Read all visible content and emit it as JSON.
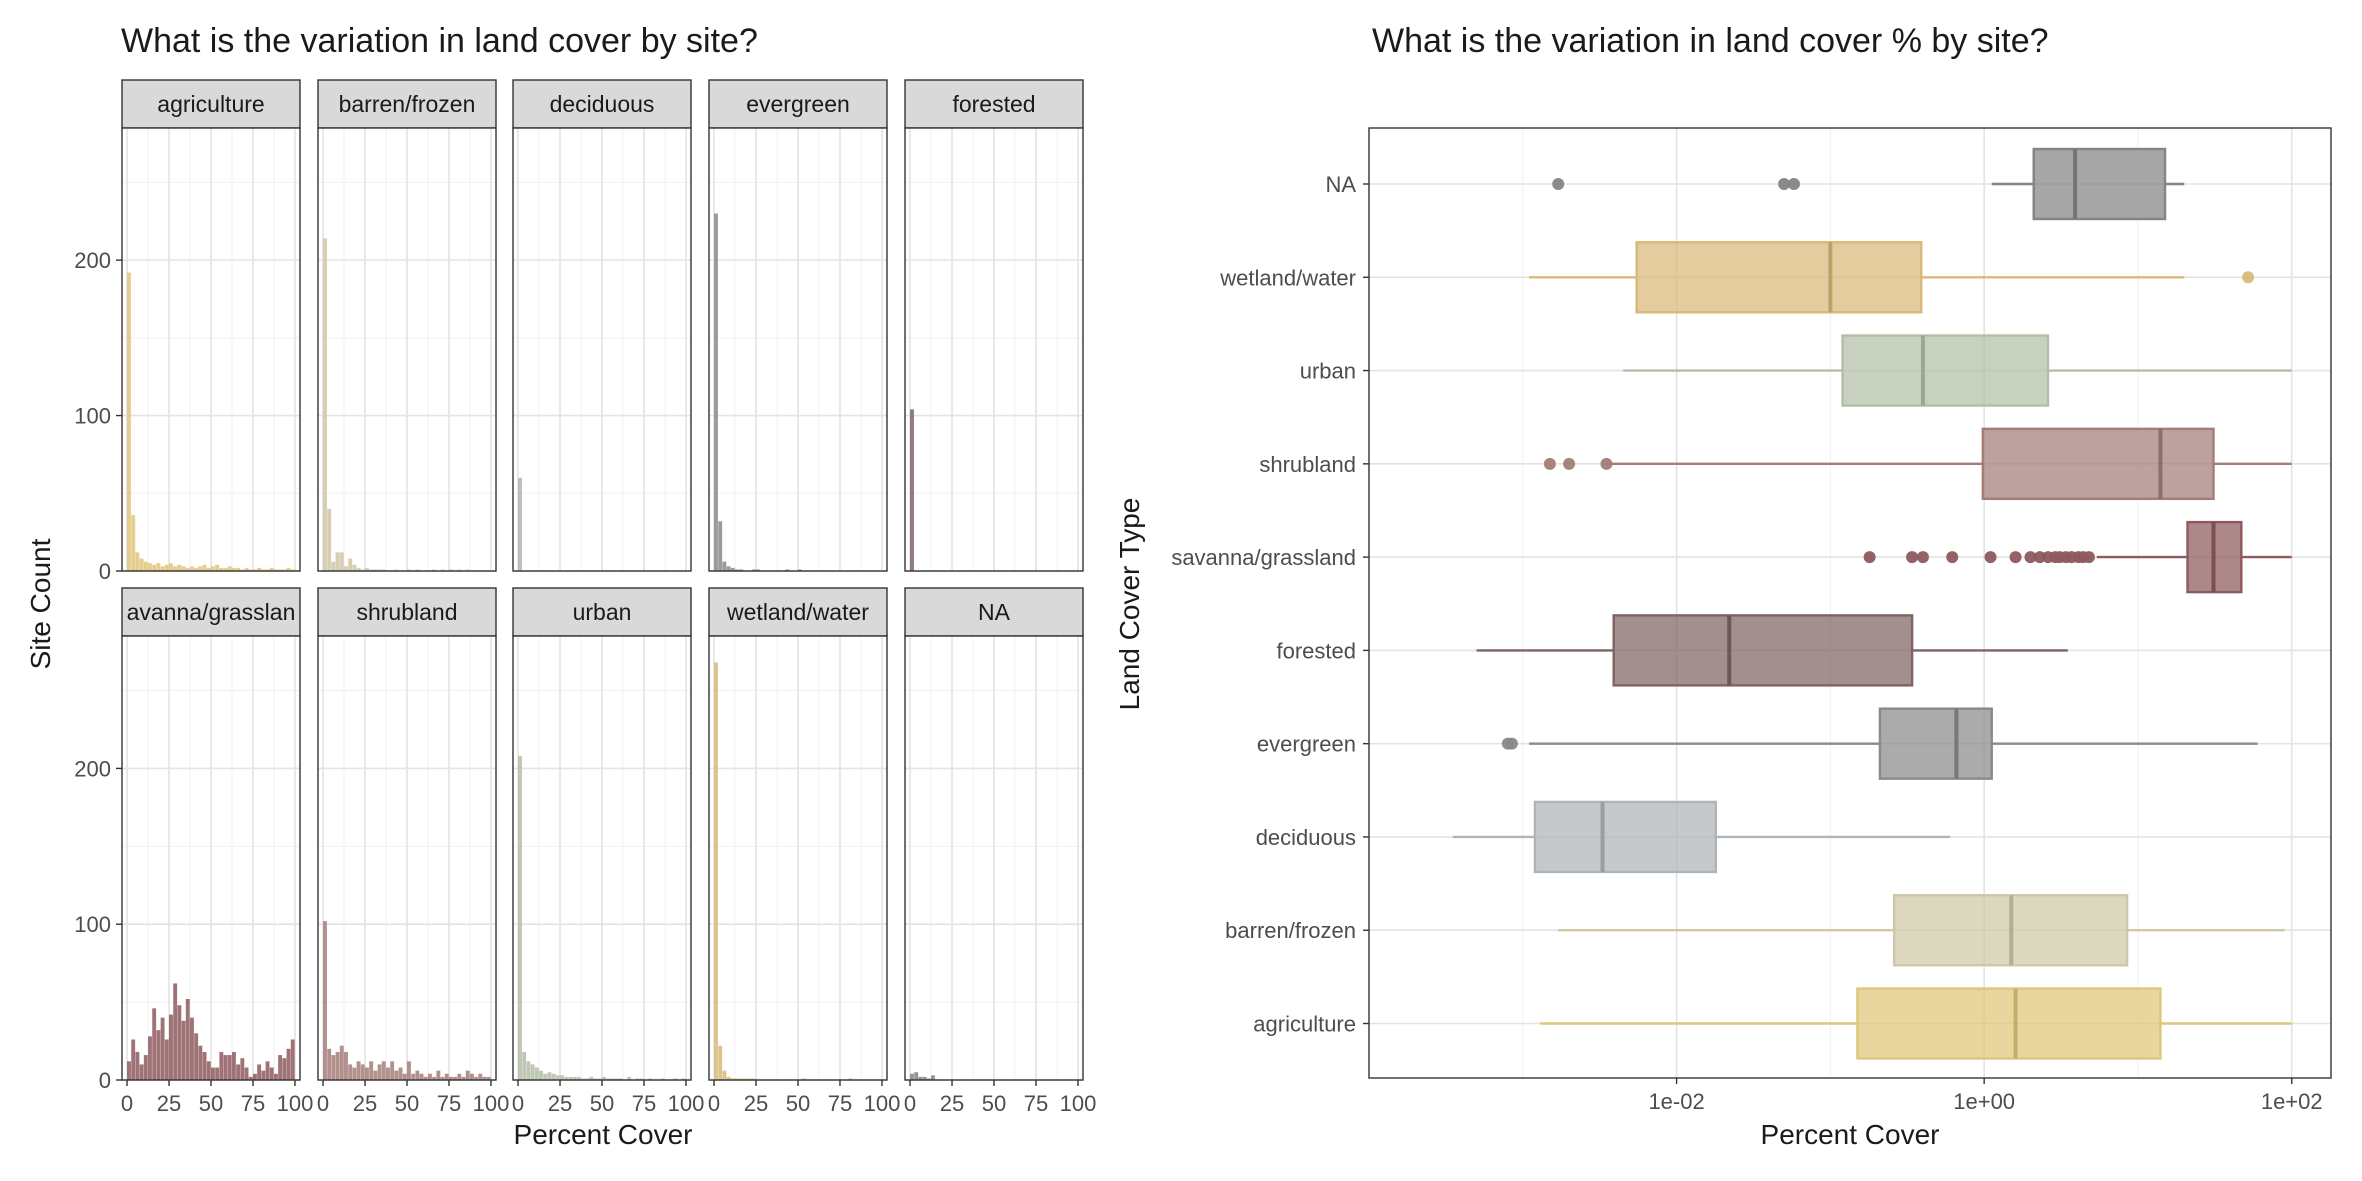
{
  "left_panel": {
    "title": "What is the variation in land cover by site?"
  },
  "right_panel": {
    "title": "What is the variation in land cover % by site?"
  },
  "colors": {
    "agriculture": "#E0C679",
    "barren/frozen": "#CFC7A6",
    "deciduous": "#AEB4B8",
    "evergreen": "#8A8A8A",
    "forested": "#7E6462",
    "savanna/grassland": "#8E5A5E",
    "shrubland": "#A47D78",
    "urban": "#B3BEA6",
    "wetland/water": "#D9B978",
    "NA": "#848484"
  },
  "chart_data": [
    {
      "type": "bar",
      "subtype": "faceted-histogram",
      "title": "What is the variation in land cover by site?",
      "xlabel": "Percent Cover",
      "ylabel": "Site Count",
      "xlim": [
        -3,
        103
      ],
      "ylim": [
        0,
        285
      ],
      "x_ticks": [
        0,
        25,
        50,
        75,
        100
      ],
      "x_tick_labels": [
        "0",
        "25",
        "50",
        "75",
        "100"
      ],
      "y_ticks": [
        0,
        100,
        200
      ],
      "y_tick_labels": [
        "0",
        "100",
        "200"
      ],
      "bin_width": 2.5,
      "grid": true,
      "facets": [
        {
          "name": "agriculture",
          "bins": [
            0,
            2.5,
            5,
            7.5,
            10,
            12.5,
            15,
            17.5,
            20,
            22.5,
            25,
            27.5,
            30,
            32.5,
            35,
            37.5,
            40,
            42.5,
            45,
            47.5,
            50,
            52.5,
            55,
            57.5,
            60,
            62.5,
            65,
            67.5,
            70,
            72.5,
            75,
            77.5,
            80,
            82.5,
            85,
            87.5,
            90,
            92.5,
            95,
            97.5
          ],
          "counts": [
            192,
            36,
            12,
            8,
            6,
            5,
            4,
            5,
            3,
            4,
            5,
            3,
            4,
            3,
            2,
            3,
            2,
            3,
            4,
            2,
            3,
            4,
            2,
            2,
            3,
            2,
            2,
            1,
            2,
            1,
            1,
            2,
            1,
            1,
            2,
            1,
            1,
            1,
            2,
            1
          ]
        },
        {
          "name": "barren/frozen",
          "bins": [
            0,
            2.5,
            5,
            7.5,
            10,
            12.5,
            15,
            17.5,
            20,
            22.5,
            25,
            27.5,
            30,
            32.5,
            35,
            37.5,
            40,
            42.5,
            45,
            47.5,
            50,
            52.5,
            55,
            57.5,
            60,
            62.5,
            65,
            67.5,
            70,
            72.5,
            75,
            77.5,
            80,
            82.5,
            85,
            87.5
          ],
          "counts": [
            214,
            40,
            6,
            12,
            12,
            3,
            8,
            4,
            2,
            1,
            2,
            1,
            1,
            1,
            1,
            0,
            0,
            1,
            0,
            0,
            1,
            0,
            1,
            0,
            0,
            0,
            1,
            0,
            1,
            0,
            1,
            0,
            1,
            0,
            1,
            0
          ]
        },
        {
          "name": "deciduous",
          "bins": [
            0
          ],
          "counts": [
            60
          ]
        },
        {
          "name": "evergreen",
          "bins": [
            0,
            2.5,
            5,
            7.5,
            10,
            12.5,
            15,
            17.5,
            20,
            22.5,
            25,
            27.5,
            30,
            32.5,
            35,
            37.5,
            40,
            42.5,
            45,
            47.5,
            50
          ],
          "counts": [
            230,
            32,
            6,
            3,
            2,
            1,
            1,
            0,
            0,
            1,
            1,
            0,
            0,
            0,
            0,
            0,
            0,
            1,
            0,
            0,
            1
          ]
        },
        {
          "name": "forested",
          "bins": [
            0
          ],
          "counts": [
            104
          ]
        },
        {
          "name": "savanna/grassland",
          "display_label": "avanna/grasslan",
          "bins": [
            0,
            2.5,
            5,
            7.5,
            10,
            12.5,
            15,
            17.5,
            20,
            22.5,
            25,
            27.5,
            30,
            32.5,
            35,
            37.5,
            40,
            42.5,
            45,
            47.5,
            50,
            52.5,
            55,
            57.5,
            60,
            62.5,
            65,
            67.5,
            70,
            72.5,
            75,
            77.5,
            80,
            82.5,
            85,
            87.5,
            90,
            92.5,
            95,
            97.5
          ],
          "counts": [
            12,
            26,
            18,
            10,
            16,
            28,
            46,
            32,
            40,
            26,
            42,
            62,
            48,
            38,
            52,
            40,
            30,
            22,
            18,
            12,
            8,
            8,
            18,
            16,
            16,
            18,
            10,
            14,
            8,
            2,
            4,
            10,
            6,
            12,
            8,
            4,
            16,
            14,
            20,
            26
          ]
        },
        {
          "name": "shrubland",
          "bins": [
            0,
            2.5,
            5,
            7.5,
            10,
            12.5,
            15,
            17.5,
            20,
            22.5,
            25,
            27.5,
            30,
            32.5,
            35,
            37.5,
            40,
            42.5,
            45,
            47.5,
            50,
            52.5,
            55,
            57.5,
            60,
            62.5,
            65,
            67.5,
            70,
            72.5,
            75,
            77.5,
            80,
            82.5,
            85,
            87.5,
            90,
            92.5,
            95,
            97.5
          ],
          "counts": [
            102,
            20,
            16,
            18,
            22,
            18,
            10,
            8,
            12,
            10,
            8,
            12,
            6,
            10,
            12,
            8,
            12,
            6,
            8,
            4,
            12,
            4,
            6,
            4,
            2,
            4,
            2,
            6,
            2,
            4,
            2,
            2,
            4,
            2,
            6,
            4,
            2,
            4,
            2,
            2
          ]
        },
        {
          "name": "urban",
          "bins": [
            0,
            2.5,
            5,
            7.5,
            10,
            12.5,
            15,
            17.5,
            20,
            22.5,
            25,
            27.5,
            30,
            32.5,
            35,
            37.5,
            40,
            42.5,
            45,
            47.5,
            50,
            52.5,
            55,
            57.5,
            60,
            62.5,
            65,
            67.5,
            70,
            72.5,
            75,
            77.5,
            80,
            82.5,
            85,
            87.5,
            90,
            92.5,
            95,
            97.5
          ],
          "counts": [
            208,
            18,
            12,
            10,
            8,
            6,
            4,
            5,
            4,
            3,
            3,
            2,
            2,
            2,
            2,
            1,
            1,
            2,
            1,
            1,
            2,
            1,
            1,
            1,
            1,
            0,
            2,
            0,
            1,
            1,
            0,
            1,
            0,
            0,
            1,
            0,
            0,
            1,
            0,
            1
          ]
        },
        {
          "name": "wetland/water",
          "bins": [
            0,
            2.5,
            5,
            7.5,
            10,
            12.5,
            15,
            17.5,
            20,
            22.5,
            25,
            27.5,
            30,
            32.5,
            35,
            37.5,
            40,
            42.5,
            45,
            47.5,
            50,
            52.5,
            55,
            57.5,
            60,
            62.5,
            65,
            67.5,
            70,
            72.5,
            75,
            77.5,
            80
          ],
          "counts": [
            268,
            22,
            6,
            2,
            1,
            1,
            1,
            1,
            1,
            1,
            0,
            0,
            0,
            0,
            0,
            0,
            0,
            0,
            0,
            0,
            0,
            1,
            0,
            0,
            0,
            0,
            0,
            0,
            0,
            0,
            0,
            0,
            1
          ]
        },
        {
          "name": "NA",
          "bins": [
            0,
            2.5,
            5,
            7.5,
            10,
            12.5
          ],
          "counts": [
            4,
            5,
            2,
            2,
            1,
            3
          ]
        }
      ]
    },
    {
      "type": "box",
      "title": "What is the variation in land cover % by site?",
      "xlabel": "Percent Cover",
      "ylabel": "Land Cover Type",
      "x_scale": "log10",
      "xlim": [
        0.0001,
        180
      ],
      "x_ticks": [
        0.01,
        1,
        100
      ],
      "x_tick_labels": [
        "1e-02",
        "1e+00",
        "1e+02"
      ],
      "grid": true,
      "categories": [
        "agriculture",
        "barren/frozen",
        "deciduous",
        "evergreen",
        "forested",
        "savanna/grassland",
        "shrubland",
        "urban",
        "wetland/water",
        "NA"
      ],
      "boxes": [
        {
          "name": "agriculture",
          "whisker_low": 0.0013,
          "q1": 0.15,
          "median": 1.6,
          "q3": 14,
          "whisker_high": 100,
          "outliers": []
        },
        {
          "name": "barren/frozen",
          "whisker_low": 0.0017,
          "q1": 0.26,
          "median": 1.5,
          "q3": 8.5,
          "whisker_high": 90,
          "outliers": []
        },
        {
          "name": "deciduous",
          "whisker_low": 0.00035,
          "q1": 0.0012,
          "median": 0.0033,
          "q3": 0.018,
          "whisker_high": 0.6,
          "outliers": []
        },
        {
          "name": "evergreen",
          "whisker_low": 0.0011,
          "q1": 0.21,
          "median": 0.66,
          "q3": 1.12,
          "whisker_high": 60,
          "outliers": [
            0.0008,
            0.00085
          ]
        },
        {
          "name": "forested",
          "whisker_low": 0.0005,
          "q1": 0.0039,
          "median": 0.022,
          "q3": 0.34,
          "whisker_high": 3.5,
          "outliers": []
        },
        {
          "name": "savanna/grassland",
          "whisker_low": 5.4,
          "q1": 21,
          "median": 31,
          "q3": 47,
          "whisker_high": 100,
          "outliers": [
            0.18,
            0.34,
            0.4,
            0.62,
            1.1,
            1.6,
            2,
            2.3,
            2.6,
            2.9,
            3.1,
            3.4,
            3.7,
            4.1,
            4.4,
            4.8
          ]
        },
        {
          "name": "shrubland",
          "whisker_low": 0.0035,
          "q1": 0.98,
          "median": 14,
          "q3": 31,
          "whisker_high": 100,
          "outliers": [
            0.0015,
            0.002,
            0.0035
          ]
        },
        {
          "name": "urban",
          "whisker_low": 0.0045,
          "q1": 0.12,
          "median": 0.4,
          "q3": 2.6,
          "whisker_high": 100,
          "outliers": []
        },
        {
          "name": "wetland/water",
          "whisker_low": 0.0011,
          "q1": 0.0055,
          "median": 0.1,
          "q3": 0.39,
          "whisker_high": 20,
          "outliers": [
            52
          ]
        },
        {
          "name": "NA",
          "whisker_low": 1.12,
          "q1": 2.1,
          "median": 3.9,
          "q3": 15,
          "whisker_high": 20,
          "outliers": [
            0.0017,
            0.05,
            0.058
          ]
        }
      ]
    }
  ]
}
